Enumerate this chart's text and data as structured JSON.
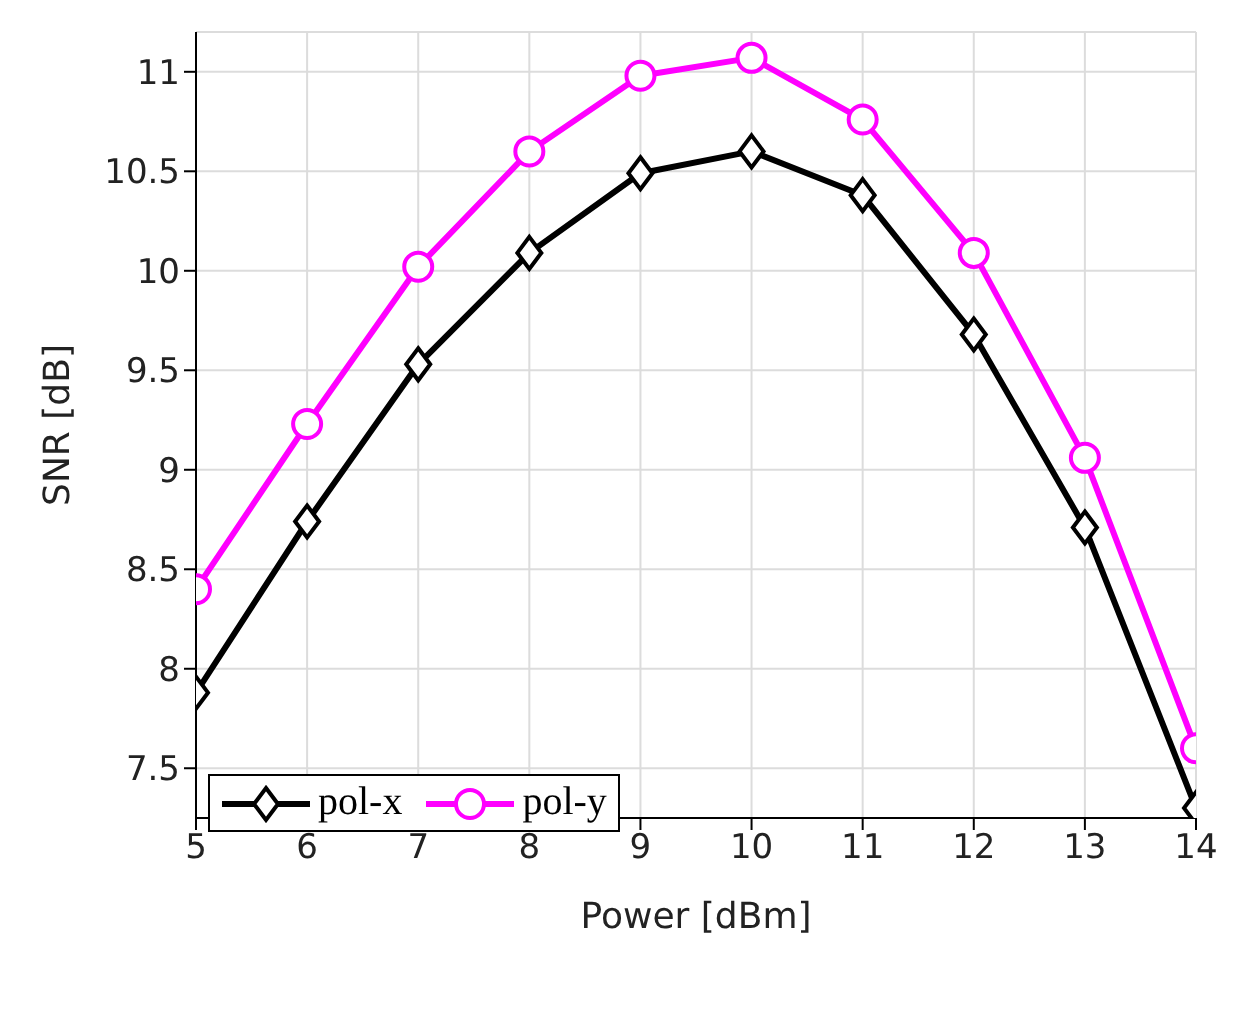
{
  "chart_data": {
    "type": "line",
    "xlabel": "Power [dBm]",
    "ylabel": "SNR [dB]",
    "x": [
      5,
      6,
      7,
      8,
      9,
      10,
      11,
      12,
      13,
      14
    ],
    "series": [
      {
        "name": "pol-x",
        "color": "#000000",
        "marker": "diamond",
        "values": [
          7.88,
          8.74,
          9.53,
          10.09,
          10.49,
          10.6,
          10.38,
          9.68,
          8.71,
          7.3
        ]
      },
      {
        "name": "pol-y",
        "color": "#ff00ff",
        "marker": "circle",
        "values": [
          8.4,
          9.23,
          10.02,
          10.6,
          10.98,
          11.07,
          10.76,
          10.09,
          9.06,
          7.6
        ]
      }
    ],
    "xlim": [
      5,
      14
    ],
    "xticks": [
      5,
      6,
      7,
      8,
      9,
      10,
      11,
      12,
      13,
      14
    ],
    "ylim": [
      7.25,
      11.2
    ],
    "yticks": [
      7.5,
      8,
      8.5,
      9,
      9.5,
      10,
      10.5,
      11
    ],
    "grid": true,
    "legend": "bottom left"
  }
}
